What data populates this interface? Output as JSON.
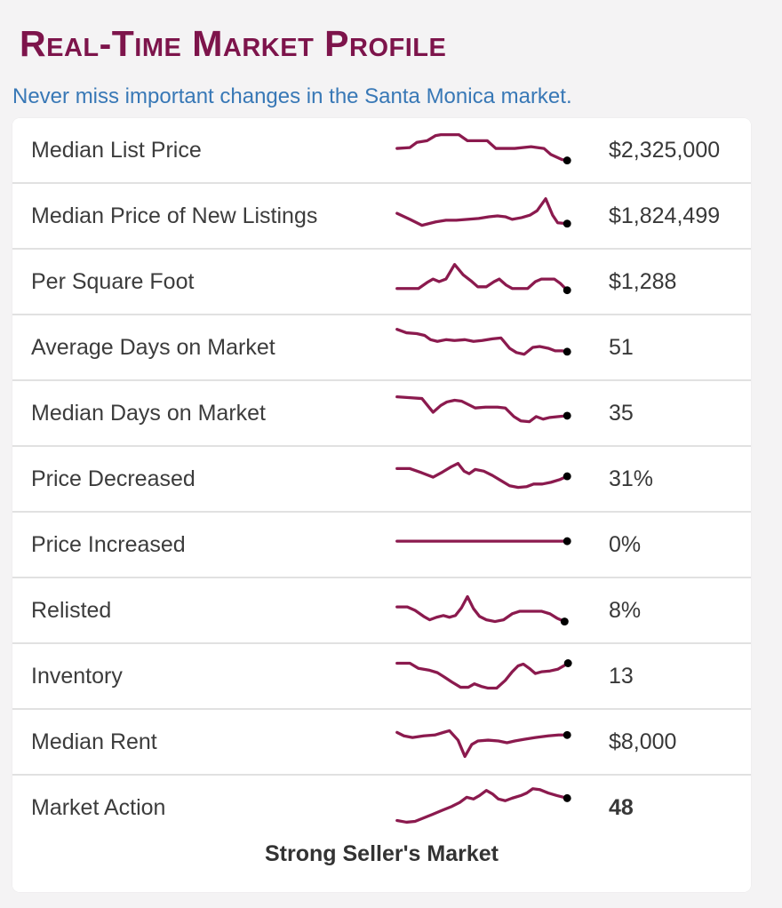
{
  "page": {
    "title": "Real-Time Market Profile",
    "subtitle": "Never miss important changes in the Santa Monica market.",
    "footer": "Strong Seller's Market"
  },
  "colors": {
    "title": "#7d144b",
    "subtitle": "#3878b6",
    "sparkline": "#8b1a4e",
    "end_dot": "#000000",
    "background": "#f4f3f4",
    "row_background": "#ffffff",
    "divider": "#e1e1e1",
    "label_text": "#3c3c3c",
    "value_text": "#383838"
  },
  "rows": [
    {
      "label": "Median List Price",
      "value": "$2,325,000",
      "bold": false,
      "spark": [
        [
          13,
          32
        ],
        [
          28,
          31
        ],
        [
          36,
          25
        ],
        [
          48,
          23
        ],
        [
          58,
          17
        ],
        [
          64,
          16
        ],
        [
          85,
          16
        ],
        [
          95,
          23
        ],
        [
          118,
          23
        ],
        [
          128,
          32
        ],
        [
          150,
          32
        ],
        [
          169,
          30
        ],
        [
          184,
          32
        ],
        [
          192,
          39
        ],
        [
          205,
          45
        ],
        [
          211,
          46
        ]
      ]
    },
    {
      "label": "Median Price of New Listings",
      "value": "$1,824,499",
      "bold": false,
      "spark": [
        [
          13,
          31
        ],
        [
          28,
          38
        ],
        [
          42,
          45
        ],
        [
          58,
          41
        ],
        [
          70,
          39
        ],
        [
          82,
          39
        ],
        [
          95,
          38
        ],
        [
          108,
          37
        ],
        [
          120,
          35
        ],
        [
          130,
          34
        ],
        [
          139,
          35
        ],
        [
          147,
          38
        ],
        [
          158,
          36
        ],
        [
          168,
          33
        ],
        [
          176,
          28
        ],
        [
          186,
          14
        ],
        [
          194,
          33
        ],
        [
          200,
          42
        ],
        [
          211,
          43
        ]
      ]
    },
    {
      "label": "Per Square Foot",
      "value": "$1,288",
      "bold": false,
      "spark": [
        [
          13,
          42
        ],
        [
          38,
          42
        ],
        [
          48,
          35
        ],
        [
          55,
          31
        ],
        [
          62,
          34
        ],
        [
          70,
          31
        ],
        [
          80,
          14
        ],
        [
          90,
          26
        ],
        [
          99,
          33
        ],
        [
          107,
          40
        ],
        [
          117,
          40
        ],
        [
          126,
          34
        ],
        [
          132,
          31
        ],
        [
          140,
          38
        ],
        [
          147,
          42
        ],
        [
          165,
          42
        ],
        [
          174,
          34
        ],
        [
          181,
          31
        ],
        [
          196,
          31
        ],
        [
          203,
          36
        ],
        [
          211,
          44
        ]
      ]
    },
    {
      "label": "Average Days on Market",
      "value": "51",
      "bold": false,
      "spark": [
        [
          13,
          13
        ],
        [
          24,
          17
        ],
        [
          36,
          18
        ],
        [
          45,
          20
        ],
        [
          52,
          25
        ],
        [
          60,
          27
        ],
        [
          70,
          25
        ],
        [
          80,
          26
        ],
        [
          92,
          25
        ],
        [
          102,
          27
        ],
        [
          112,
          26
        ],
        [
          124,
          24
        ],
        [
          134,
          23
        ],
        [
          144,
          35
        ],
        [
          152,
          40
        ],
        [
          161,
          42
        ],
        [
          171,
          34
        ],
        [
          179,
          33
        ],
        [
          189,
          35
        ],
        [
          197,
          38
        ],
        [
          205,
          38
        ],
        [
          211,
          39
        ]
      ]
    },
    {
      "label": "Median Days on Market",
      "value": "35",
      "bold": false,
      "spark": [
        [
          13,
          15
        ],
        [
          28,
          16
        ],
        [
          42,
          17
        ],
        [
          55,
          33
        ],
        [
          64,
          25
        ],
        [
          71,
          21
        ],
        [
          80,
          19
        ],
        [
          88,
          20
        ],
        [
          96,
          24
        ],
        [
          104,
          28
        ],
        [
          116,
          27
        ],
        [
          130,
          27
        ],
        [
          139,
          28
        ],
        [
          149,
          38
        ],
        [
          157,
          43
        ],
        [
          167,
          44
        ],
        [
          175,
          38
        ],
        [
          183,
          41
        ],
        [
          191,
          39
        ],
        [
          201,
          38
        ],
        [
          211,
          37
        ]
      ]
    },
    {
      "label": "Price Decreased",
      "value": "31%",
      "bold": false,
      "spark": [
        [
          13,
          22
        ],
        [
          28,
          22
        ],
        [
          42,
          27
        ],
        [
          55,
          32
        ],
        [
          66,
          26
        ],
        [
          76,
          20
        ],
        [
          84,
          16
        ],
        [
          91,
          25
        ],
        [
          97,
          28
        ],
        [
          104,
          23
        ],
        [
          114,
          25
        ],
        [
          124,
          30
        ],
        [
          134,
          36
        ],
        [
          144,
          42
        ],
        [
          154,
          44
        ],
        [
          164,
          43
        ],
        [
          172,
          40
        ],
        [
          182,
          40
        ],
        [
          192,
          38
        ],
        [
          202,
          35
        ],
        [
          211,
          31
        ]
      ]
    },
    {
      "label": "Price Increased",
      "value": "0%",
      "bold": false,
      "spark": [
        [
          13,
          30
        ],
        [
          211,
          30
        ]
      ]
    },
    {
      "label": "Relisted",
      "value": "8%",
      "bold": false,
      "spark": [
        [
          13,
          30
        ],
        [
          25,
          30
        ],
        [
          34,
          34
        ],
        [
          44,
          41
        ],
        [
          51,
          45
        ],
        [
          59,
          42
        ],
        [
          67,
          40
        ],
        [
          74,
          42
        ],
        [
          81,
          40
        ],
        [
          88,
          31
        ],
        [
          95,
          18
        ],
        [
          102,
          32
        ],
        [
          109,
          41
        ],
        [
          117,
          45
        ],
        [
          127,
          47
        ],
        [
          137,
          45
        ],
        [
          147,
          38
        ],
        [
          156,
          35
        ],
        [
          171,
          35
        ],
        [
          181,
          35
        ],
        [
          191,
          38
        ],
        [
          199,
          43
        ],
        [
          208,
          47
        ]
      ]
    },
    {
      "label": "Inventory",
      "value": "13",
      "bold": false,
      "spark": [
        [
          13,
          19
        ],
        [
          28,
          19
        ],
        [
          38,
          25
        ],
        [
          50,
          27
        ],
        [
          60,
          30
        ],
        [
          68,
          35
        ],
        [
          77,
          41
        ],
        [
          87,
          47
        ],
        [
          96,
          47
        ],
        [
          103,
          43
        ],
        [
          111,
          46
        ],
        [
          119,
          48
        ],
        [
          129,
          48
        ],
        [
          139,
          39
        ],
        [
          147,
          29
        ],
        [
          154,
          22
        ],
        [
          160,
          20
        ],
        [
          167,
          25
        ],
        [
          174,
          31
        ],
        [
          181,
          29
        ],
        [
          191,
          28
        ],
        [
          200,
          26
        ],
        [
          207,
          22
        ],
        [
          212,
          19
        ]
      ]
    },
    {
      "label": "Median Rent",
      "value": "$8,000",
      "bold": false,
      "spark": [
        [
          13,
          23
        ],
        [
          21,
          27
        ],
        [
          31,
          29
        ],
        [
          44,
          27
        ],
        [
          57,
          26
        ],
        [
          67,
          23
        ],
        [
          74,
          21
        ],
        [
          84,
          32
        ],
        [
          92,
          51
        ],
        [
          100,
          37
        ],
        [
          107,
          33
        ],
        [
          119,
          32
        ],
        [
          131,
          33
        ],
        [
          141,
          35
        ],
        [
          150,
          33
        ],
        [
          161,
          31
        ],
        [
          174,
          29
        ],
        [
          189,
          27
        ],
        [
          201,
          26
        ],
        [
          211,
          26
        ]
      ]
    },
    {
      "label": "Market Action",
      "value": "48",
      "bold": true,
      "spark": [
        [
          13,
          49
        ],
        [
          24,
          51
        ],
        [
          34,
          50
        ],
        [
          44,
          46
        ],
        [
          54,
          42
        ],
        [
          66,
          37
        ],
        [
          76,
          33
        ],
        [
          86,
          28
        ],
        [
          94,
          22
        ],
        [
          102,
          24
        ],
        [
          109,
          20
        ],
        [
          117,
          14
        ],
        [
          124,
          18
        ],
        [
          131,
          24
        ],
        [
          139,
          26
        ],
        [
          147,
          23
        ],
        [
          157,
          20
        ],
        [
          164,
          17
        ],
        [
          171,
          12
        ],
        [
          179,
          13
        ],
        [
          189,
          17
        ],
        [
          199,
          20
        ],
        [
          211,
          23
        ]
      ]
    }
  ]
}
